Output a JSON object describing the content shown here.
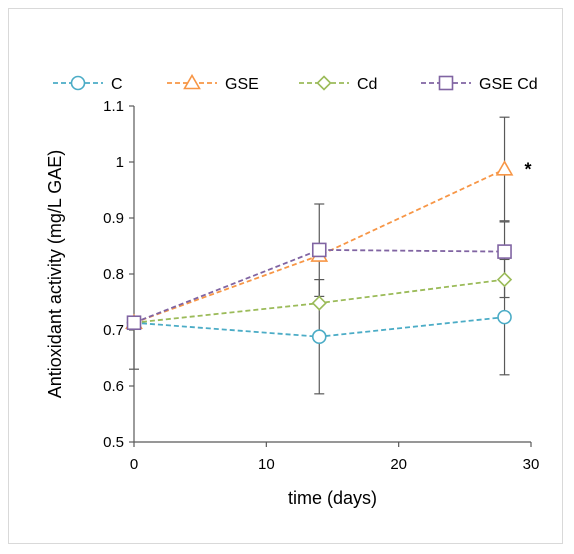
{
  "chart_data": {
    "type": "line",
    "xlabel": "time (days)",
    "ylabel": "Antioxidant activity (mg/L GAE)",
    "xlim": [
      0,
      30
    ],
    "ylim": [
      0.5,
      1.1
    ],
    "xticks": [
      "0",
      "10",
      "20",
      "30"
    ],
    "yticks": [
      "0.5",
      "0.6",
      "0.7",
      "0.8",
      "0.9",
      "1",
      "1.1"
    ],
    "legend_position": "top",
    "grid": false,
    "x": [
      0,
      14,
      28
    ],
    "series": [
      {
        "name": "C",
        "color": "#4bacc6",
        "marker": "circle",
        "values": [
          0.713,
          0.688,
          0.723
        ],
        "error_low": [
          null,
          0.586,
          0.62
        ],
        "error_high": [
          null,
          0.79,
          0.826
        ]
      },
      {
        "name": "GSE",
        "color": "#f79646",
        "marker": "triangle",
        "values": [
          0.713,
          0.833,
          0.987
        ],
        "error_low": [
          null,
          null,
          0.895
        ],
        "error_high": [
          null,
          null,
          1.08
        ]
      },
      {
        "name": "Cd",
        "color": "#9bbb59",
        "marker": "diamond",
        "values": [
          0.713,
          0.748,
          0.79
        ],
        "error_low": [
          null,
          null,
          null
        ],
        "error_high": [
          null,
          null,
          null
        ]
      },
      {
        "name": "GSE Cd",
        "color": "#8064a2",
        "marker": "square",
        "values": [
          0.713,
          0.843,
          0.84
        ],
        "error_low": [
          0.63,
          0.76,
          0.758
        ],
        "error_high": [
          null,
          0.925,
          0.893
        ]
      }
    ],
    "annotations": [
      {
        "text": "*",
        "x": 28,
        "y": 0.99
      }
    ]
  }
}
